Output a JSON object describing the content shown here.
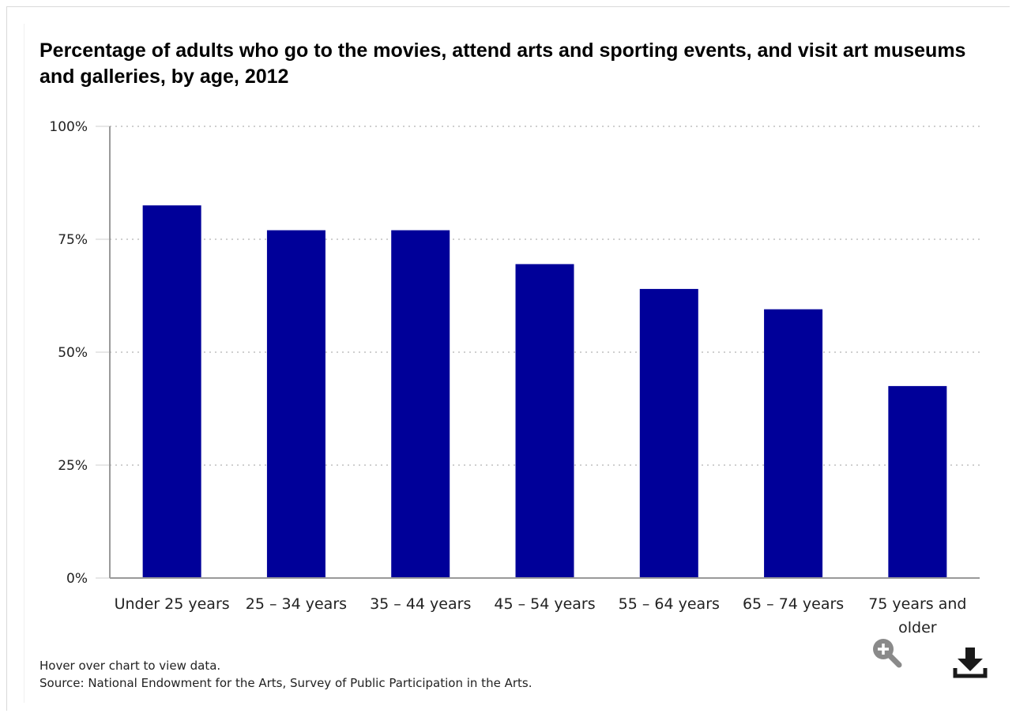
{
  "chart": {
    "title": "Percentage of adults who go to the movies, attend arts and sporting events, and visit art museums and galleries, by age, 2012"
  },
  "chart_data": {
    "type": "bar",
    "title": "Percentage of adults who go to the movies, attend arts and sporting events, and visit art museums and galleries, by age, 2012",
    "categories": [
      "Under 25 years",
      "25 – 34 years",
      "35 – 44 years",
      "45 – 54 years",
      "55 – 64 years",
      "65 – 74 years",
      "75 years and older"
    ],
    "values": [
      82.5,
      77,
      77,
      69.5,
      64,
      59.5,
      42.5
    ],
    "ylim": [
      0,
      100
    ],
    "yticks": [
      "0%",
      "25%",
      "50%",
      "75%",
      "100%"
    ],
    "ytick_values": [
      0,
      25,
      50,
      75,
      100
    ],
    "xlabel": "",
    "ylabel": "",
    "grid": true,
    "bar_color": "#000099"
  },
  "footer": {
    "hint": "Hover over chart to view data.",
    "source": "Source: National Endowment for the Arts, Survey of Public Participation in the Arts."
  },
  "toolbar": {
    "zoom_icon": "zoom-in-icon",
    "download_icon": "download-icon"
  }
}
